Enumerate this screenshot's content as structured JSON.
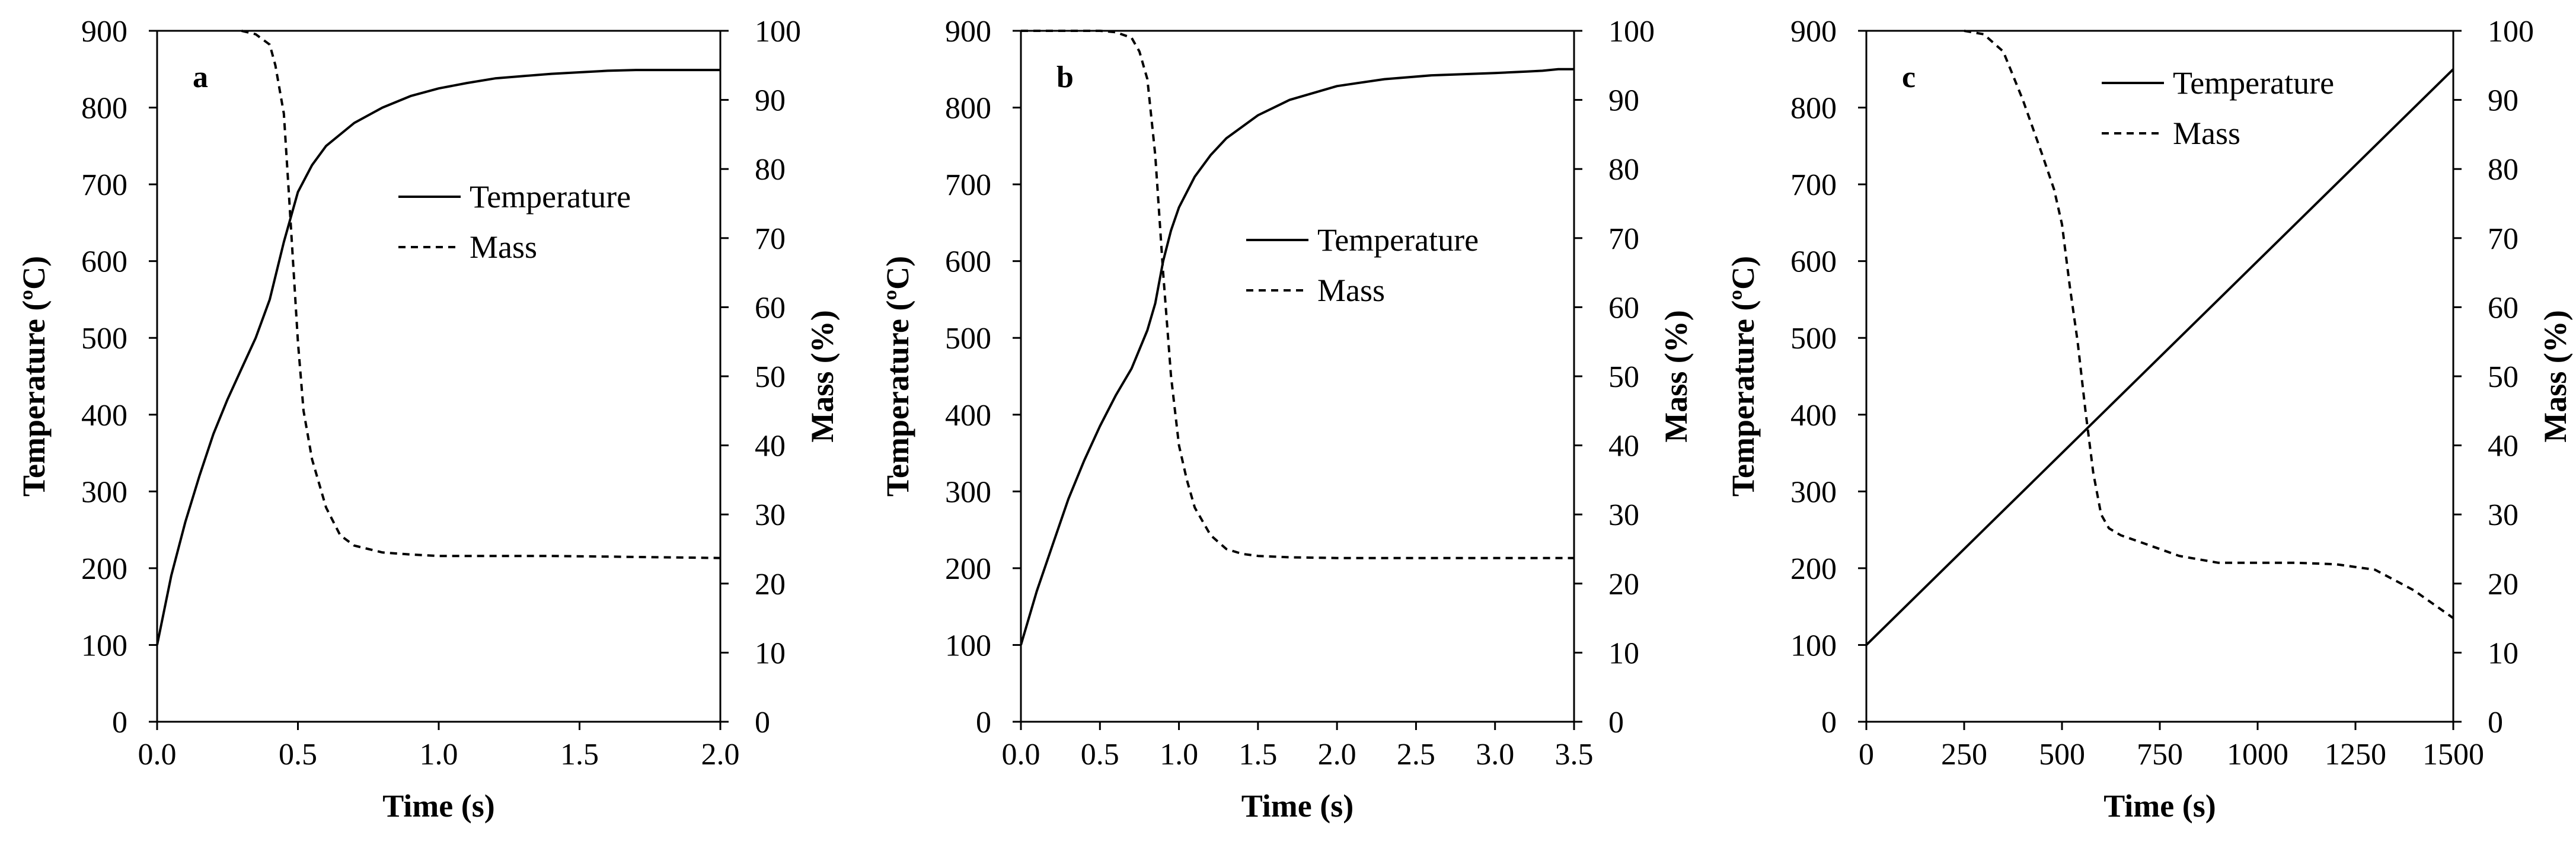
{
  "chart_data": [
    {
      "type": "line",
      "panel_label": "a",
      "xlabel": "Time (s)",
      "ylabel_left": "Temperature (ºC)",
      "ylabel_right": "Mass (%)",
      "xlim": [
        0,
        2.0
      ],
      "ylim_left": [
        0,
        900
      ],
      "ylim_right": [
        0,
        100
      ],
      "xticks": [
        "0.0",
        "0.5",
        "1.0",
        "1.5",
        "2.0"
      ],
      "yticks_left": [
        "0",
        "100",
        "200",
        "300",
        "400",
        "500",
        "600",
        "700",
        "800",
        "900"
      ],
      "yticks_right": [
        "0",
        "10",
        "20",
        "30",
        "40",
        "50",
        "60",
        "70",
        "80",
        "90",
        "100"
      ],
      "legend_placement": "center-right",
      "series": [
        {
          "name": "Temperature",
          "axis": "left",
          "style": "solid",
          "x": [
            0,
            0.05,
            0.1,
            0.15,
            0.2,
            0.25,
            0.3,
            0.35,
            0.4,
            0.45,
            0.5,
            0.55,
            0.6,
            0.7,
            0.8,
            0.9,
            1.0,
            1.1,
            1.2,
            1.3,
            1.4,
            1.5,
            1.6,
            1.7,
            1.8,
            1.9,
            2.0
          ],
          "values": [
            100,
            190,
            260,
            320,
            375,
            420,
            460,
            500,
            550,
            625,
            690,
            725,
            750,
            780,
            800,
            815,
            825,
            832,
            838,
            841,
            844,
            846,
            848,
            849,
            849,
            849,
            849
          ]
        },
        {
          "name": "Mass",
          "axis": "right",
          "style": "dashed",
          "x": [
            0.3,
            0.35,
            0.4,
            0.42,
            0.45,
            0.47,
            0.5,
            0.52,
            0.55,
            0.6,
            0.65,
            0.7,
            0.8,
            0.9,
            1.0,
            1.2,
            1.4,
            1.6,
            1.8,
            2.0
          ],
          "values": [
            100,
            99.5,
            98,
            95,
            88,
            75,
            55,
            45,
            38,
            31,
            27,
            25.5,
            24.5,
            24.2,
            24.0,
            24.0,
            24.0,
            23.9,
            23.8,
            23.7
          ]
        }
      ]
    },
    {
      "type": "line",
      "panel_label": "b",
      "xlabel": "Time (s)",
      "ylabel_left": "Temperature (ºC)",
      "ylabel_right": "Mass (%)",
      "xlim": [
        0,
        3.5
      ],
      "ylim_left": [
        0,
        900
      ],
      "ylim_right": [
        0,
        100
      ],
      "xticks": [
        "0.0",
        "0.5",
        "1.0",
        "1.5",
        "2.0",
        "2.5",
        "3.0",
        "3.5"
      ],
      "yticks_left": [
        "0",
        "100",
        "200",
        "300",
        "400",
        "500",
        "600",
        "700",
        "800",
        "900"
      ],
      "yticks_right": [
        "0",
        "10",
        "20",
        "30",
        "40",
        "50",
        "60",
        "70",
        "80",
        "90",
        "100"
      ],
      "legend_placement": "center-right",
      "series": [
        {
          "name": "Temperature",
          "axis": "left",
          "style": "solid",
          "x": [
            0,
            0.1,
            0.2,
            0.3,
            0.4,
            0.5,
            0.6,
            0.7,
            0.8,
            0.85,
            0.9,
            0.95,
            1.0,
            1.1,
            1.2,
            1.3,
            1.5,
            1.7,
            2.0,
            2.3,
            2.6,
            3.0,
            3.2,
            3.3,
            3.4,
            3.5
          ],
          "values": [
            100,
            170,
            230,
            290,
            340,
            385,
            425,
            460,
            510,
            545,
            600,
            640,
            670,
            710,
            738,
            760,
            790,
            810,
            828,
            837,
            842,
            845,
            847,
            848,
            850,
            850
          ]
        },
        {
          "name": "Mass",
          "axis": "right",
          "style": "dashed",
          "x": [
            0,
            0.5,
            0.6,
            0.7,
            0.75,
            0.8,
            0.85,
            0.9,
            0.95,
            1.0,
            1.05,
            1.1,
            1.2,
            1.3,
            1.4,
            1.5,
            1.7,
            2.0,
            2.5,
            3.0,
            3.5
          ],
          "values": [
            100,
            100,
            99.8,
            99,
            97,
            93,
            82,
            65,
            50,
            40,
            35,
            31,
            27,
            25,
            24.3,
            24.0,
            23.8,
            23.7,
            23.7,
            23.7,
            23.7
          ]
        }
      ]
    },
    {
      "type": "line",
      "panel_label": "c",
      "xlabel": "Time (s)",
      "ylabel_left": "Temperature (ºC)",
      "ylabel_right": "Mass (%)",
      "xlim": [
        0,
        1500
      ],
      "ylim_left": [
        0,
        900
      ],
      "ylim_right": [
        0,
        100
      ],
      "xticks": [
        "0",
        "250",
        "500",
        "750",
        "1000",
        "1250",
        "1500"
      ],
      "yticks_left": [
        "0",
        "100",
        "200",
        "300",
        "400",
        "500",
        "600",
        "700",
        "800",
        "900"
      ],
      "yticks_right": [
        "0",
        "10",
        "20",
        "30",
        "40",
        "50",
        "60",
        "70",
        "80",
        "90",
        "100"
      ],
      "legend_placement": "top-center",
      "series": [
        {
          "name": "Temperature",
          "axis": "left",
          "style": "solid",
          "x": [
            0,
            1500
          ],
          "values": [
            100,
            850
          ]
        },
        {
          "name": "Mass",
          "axis": "right",
          "style": "dashed",
          "x": [
            250,
            300,
            350,
            400,
            450,
            480,
            500,
            520,
            540,
            560,
            580,
            600,
            620,
            650,
            700,
            800,
            900,
            1000,
            1100,
            1200,
            1300,
            1350,
            1400,
            1450,
            1500
          ],
          "values": [
            100,
            99.5,
            97,
            90,
            82,
            77,
            72,
            63,
            55,
            45,
            36,
            30,
            28,
            27,
            26,
            24,
            23,
            23,
            23,
            22.8,
            22,
            20.5,
            19,
            17,
            15
          ]
        }
      ]
    }
  ]
}
